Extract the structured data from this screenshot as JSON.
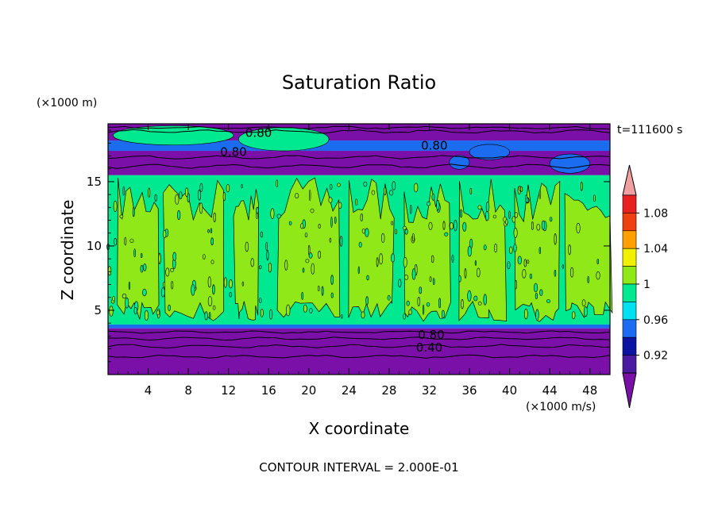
{
  "chart_data": {
    "type": "heatmap",
    "title": "Saturation Ratio",
    "xlabel": "X coordinate",
    "ylabel": "Z coordinate",
    "x_unit": "(×1000 m/s)",
    "y_unit": "(×1000 m)",
    "time_label": "t=111600 s",
    "footer": "CONTOUR INTERVAL = 2.000E-01",
    "xlim": [
      0,
      50
    ],
    "ylim": [
      0,
      19.5
    ],
    "x_ticks": [
      4,
      8,
      12,
      16,
      20,
      24,
      28,
      32,
      36,
      40,
      44,
      48
    ],
    "y_ticks": [
      5,
      10,
      15
    ],
    "grid": false,
    "colorbar": {
      "labels": [
        {
          "value": 0.92,
          "text": "0.92"
        },
        {
          "value": 0.96,
          "text": "0.96"
        },
        {
          "value": 1.0,
          "text": "1"
        },
        {
          "value": 1.04,
          "text": "1.04"
        },
        {
          "value": 1.08,
          "text": "1.08"
        }
      ],
      "levels": [
        {
          "from": null,
          "to": 0.9,
          "color": "#7a10a8"
        },
        {
          "from": 0.9,
          "to": 0.92,
          "color": "#4a1aa0"
        },
        {
          "from": 0.92,
          "to": 0.94,
          "color": "#0a14a0"
        },
        {
          "from": 0.94,
          "to": 0.96,
          "color": "#1c6cf0"
        },
        {
          "from": 0.96,
          "to": 0.98,
          "color": "#00e0f0"
        },
        {
          "from": 0.98,
          "to": 1.0,
          "color": "#00e890"
        },
        {
          "from": 1.0,
          "to": 1.02,
          "color": "#90e818"
        },
        {
          "from": 1.02,
          "to": 1.04,
          "color": "#f0f000"
        },
        {
          "from": 1.04,
          "to": 1.06,
          "color": "#ffa000"
        },
        {
          "from": 1.06,
          "to": 1.08,
          "color": "#f04010"
        },
        {
          "from": 1.08,
          "to": 1.1,
          "color": "#e82020"
        },
        {
          "from": 1.1,
          "to": null,
          "color": "#f0a0a0"
        }
      ]
    },
    "regions": [
      {
        "z_from": 0,
        "z_to": 3.6,
        "value_range": "< 0.90"
      },
      {
        "z_from": 3.6,
        "z_to": 3.9,
        "value_range": "0.94-0.98"
      },
      {
        "z_from": 3.9,
        "z_to": 15.5,
        "value_range": "0.98-1.02"
      },
      {
        "z_from": 15.5,
        "z_to": 17.4,
        "value_range": "< 0.90"
      },
      {
        "z_from": 17.4,
        "z_to": 18.2,
        "value_range": "0.94-0.98"
      },
      {
        "z_from": 18.2,
        "z_to": 19.5,
        "value_range": "< 0.90"
      }
    ],
    "contour_labels": [
      {
        "text": "0.80",
        "x": 15.0,
        "z": 18.8
      },
      {
        "text": "0.80",
        "x": 12.5,
        "z": 17.3
      },
      {
        "text": "0.80",
        "x": 32.5,
        "z": 17.8
      },
      {
        "text": "0.80",
        "x": 32.2,
        "z": 3.1
      },
      {
        "text": "0.40",
        "x": 32.0,
        "z": 2.1
      }
    ]
  }
}
